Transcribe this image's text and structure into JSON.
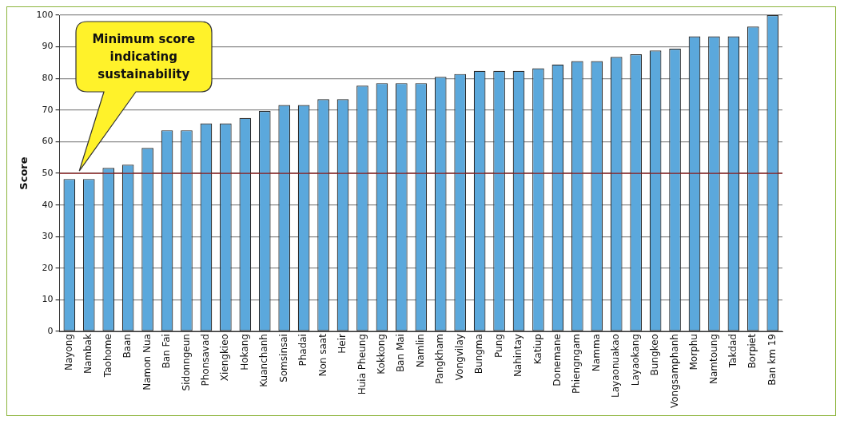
{
  "chart_data": {
    "type": "bar",
    "ylabel": "Score",
    "categories": [
      "Nayong",
      "Nambak",
      "Taohome",
      "Baan",
      "Namon Nua",
      "Ban Fai",
      "Sidonngeun",
      "Phonsavad",
      "Xiengkieo",
      "Hokang",
      "Kuanchanh",
      "Somsinsai",
      "Phadai",
      "Non saat",
      "Heir",
      "Huia Pheung",
      "Kokkong",
      "Ban Mai",
      "Namlin",
      "Pangkham",
      "Vongvilay",
      "Bungma",
      "Pung",
      "Nahintay",
      "Katiup",
      "Donemane",
      "Phiengngam",
      "Namma",
      "Layaonuakao",
      "Layaokang",
      "Bungkeo",
      "Vongsamphanh",
      "Morphu",
      "Namtoung",
      "Takdad",
      "Borpiet",
      "Ban km 19"
    ],
    "values": [
      48.2,
      48.2,
      51.7,
      52.7,
      58,
      63.6,
      63.6,
      65.8,
      65.8,
      67.5,
      69.7,
      71.6,
      71.6,
      73.4,
      73.4,
      77.7,
      78.5,
      78.5,
      78.5,
      80.5,
      81.4,
      82.4,
      82.4,
      82.4,
      83.2,
      84.4,
      85.5,
      85.5,
      86.8,
      87.6,
      88.8,
      89.4,
      93.3,
      93.3,
      93.3,
      96.4,
      100
    ],
    "color": "#5ba8dc",
    "ylim": [
      0,
      100
    ],
    "yticks": [
      0,
      10,
      20,
      30,
      40,
      50,
      60,
      70,
      80,
      90,
      100
    ],
    "grid": "y",
    "legend": false,
    "annotations": [
      "Minimum score indicating sustainability"
    ],
    "ref_lines": [
      {
        "axis": "y",
        "value": 50,
        "color": "#8b1a1a"
      }
    ]
  }
}
